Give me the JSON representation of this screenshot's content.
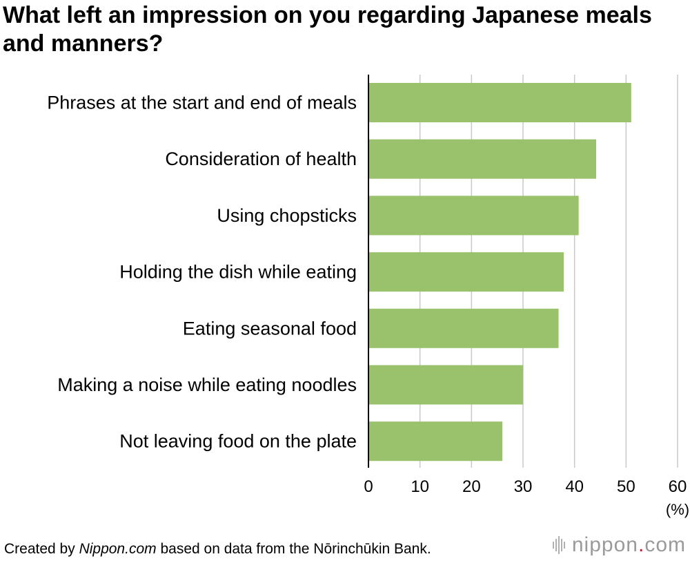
{
  "title": "What left an impression on you regarding Japanese meals and manners?",
  "chart_data": {
    "type": "bar",
    "orientation": "horizontal",
    "title": "What left an impression on you regarding Japanese meals and manners?",
    "categories": [
      "Phrases at the start and end of meals",
      "Consideration of health",
      "Using chopsticks",
      "Holding the dish while eating",
      "Eating seasonal food",
      "Making a noise while eating noodles",
      "Not leaving food on the plate"
    ],
    "values": [
      51,
      44.2,
      40.8,
      37.9,
      36.9,
      30,
      26
    ],
    "xlim": [
      0,
      60
    ],
    "xticks": [
      0,
      10,
      20,
      30,
      40,
      50,
      60
    ],
    "xunit": "(%)",
    "grid": "vertical",
    "bar_color": "#9ac16c"
  },
  "footer": {
    "prefix": "Created by ",
    "source_name": "Nippon.com",
    "suffix": " based on data from the Nōrinchūkin Bank."
  },
  "logo": {
    "name": "nippon",
    "dot": ".",
    "tld": "com"
  }
}
